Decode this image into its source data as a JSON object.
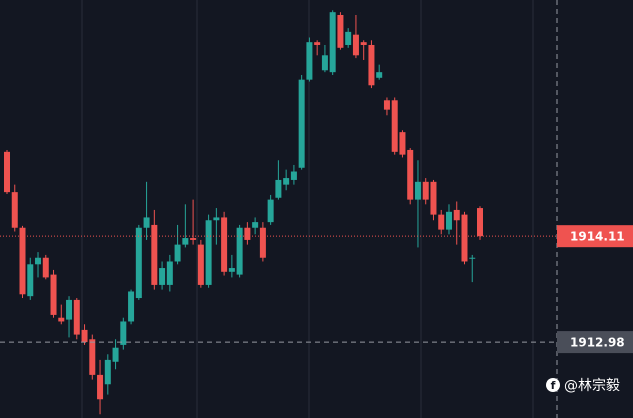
{
  "chart_data": {
    "type": "candlestick",
    "open": [
      1915.01,
      1914.58,
      1914.2,
      1913.47,
      1913.81,
      1913.88,
      1913.7,
      1913.24,
      1913.22,
      1913.43,
      1913.11,
      1913.01,
      1912.63,
      1912.53,
      1912.77,
      1912.95,
      1913.2,
      1913.45,
      1914.2,
      1914.23,
      1913.59,
      1913.59,
      1913.84,
      1914.02,
      1914.09,
      1914.02,
      1913.59,
      1914.28,
      1914.31,
      1913.73,
      1913.7,
      1914.2,
      1914.2,
      1914.2,
      1914.26,
      1914.52,
      1914.66,
      1914.71,
      1914.84,
      1915.78,
      1916.18,
      1915.88,
      1915.86,
      1916.47,
      1916.15,
      1916.26,
      1916.18,
      1916.15,
      1915.8,
      1915.56,
      1915.56,
      1915.22,
      1915.03,
      1914.5,
      1914.69,
      1914.69,
      1914.34,
      1914.18,
      1914.39,
      1914.34,
      1913.88,
      1914.41
    ],
    "high": [
      1915.03,
      1914.66,
      1914.22,
      1913.88,
      1913.94,
      1913.91,
      1913.75,
      1913.38,
      1913.47,
      1913.45,
      1913.17,
      1913.06,
      1912.79,
      1912.85,
      1913.01,
      1913.24,
      1913.54,
      1914.23,
      1914.69,
      1914.39,
      1913.84,
      1913.91,
      1914.23,
      1914.45,
      1914.5,
      1914.07,
      1914.34,
      1914.41,
      1914.37,
      1913.91,
      1914.23,
      1914.26,
      1914.31,
      1914.26,
      1914.55,
      1914.92,
      1914.82,
      1914.87,
      1915.83,
      1916.23,
      1916.2,
      1916.15,
      1916.52,
      1916.5,
      1916.33,
      1916.47,
      1916.2,
      1916.2,
      1915.94,
      1915.59,
      1915.59,
      1915.24,
      1915.05,
      1914.92,
      1914.73,
      1914.71,
      1914.39,
      1914.45,
      1914.48,
      1914.37,
      1913.91,
      1914.43
    ],
    "low": [
      1914.56,
      1914.16,
      1913.45,
      1913.43,
      1913.67,
      1913.65,
      1913.24,
      1913.17,
      1913.03,
      1913.01,
      1912.95,
      1912.58,
      1912.21,
      1912.42,
      1912.69,
      1912.9,
      1913.17,
      1913.43,
      1914.07,
      1913.54,
      1913.54,
      1913.52,
      1913.81,
      1913.99,
      1914.02,
      1913.56,
      1913.56,
      1914.02,
      1913.69,
      1913.67,
      1913.67,
      1914.02,
      1914.13,
      1913.84,
      1914.23,
      1914.5,
      1914.6,
      1914.66,
      1914.82,
      1915.76,
      1916.04,
      1915.86,
      1915.83,
      1916.1,
      1916.12,
      1916.01,
      1915.99,
      1915.69,
      1915.78,
      1915.4,
      1914.98,
      1914.95,
      1914.45,
      1913.99,
      1914.45,
      1914.28,
      1914.13,
      1914.13,
      1914.02,
      1913.81,
      1913.62,
      1914.07
    ],
    "close": [
      1914.58,
      1914.2,
      1913.49,
      1913.81,
      1913.88,
      1913.67,
      1913.27,
      1913.2,
      1913.43,
      1913.06,
      1912.98,
      1912.63,
      1912.37,
      1912.79,
      1912.92,
      1913.2,
      1913.52,
      1914.2,
      1914.31,
      1913.59,
      1913.77,
      1913.84,
      1914.02,
      1914.09,
      1914.07,
      1913.59,
      1914.28,
      1914.31,
      1913.73,
      1913.77,
      1914.2,
      1914.07,
      1914.26,
      1913.88,
      1914.5,
      1914.71,
      1914.73,
      1914.8,
      1915.78,
      1916.18,
      1916.15,
      1916.04,
      1916.5,
      1916.12,
      1916.29,
      1916.04,
      1916.15,
      1915.72,
      1915.86,
      1915.46,
      1915.01,
      1914.98,
      1914.5,
      1914.69,
      1914.5,
      1914.34,
      1914.18,
      1914.37,
      1914.28,
      1913.84,
      1913.88,
      1914.11
    ],
    "up_color": "#26a69a",
    "down_color": "#ef5350",
    "ylim": [
      1912.17,
      1916.63
    ],
    "last_price": 1914.11,
    "marked_price": 1912.98
  },
  "watermark": "@林宗毅"
}
